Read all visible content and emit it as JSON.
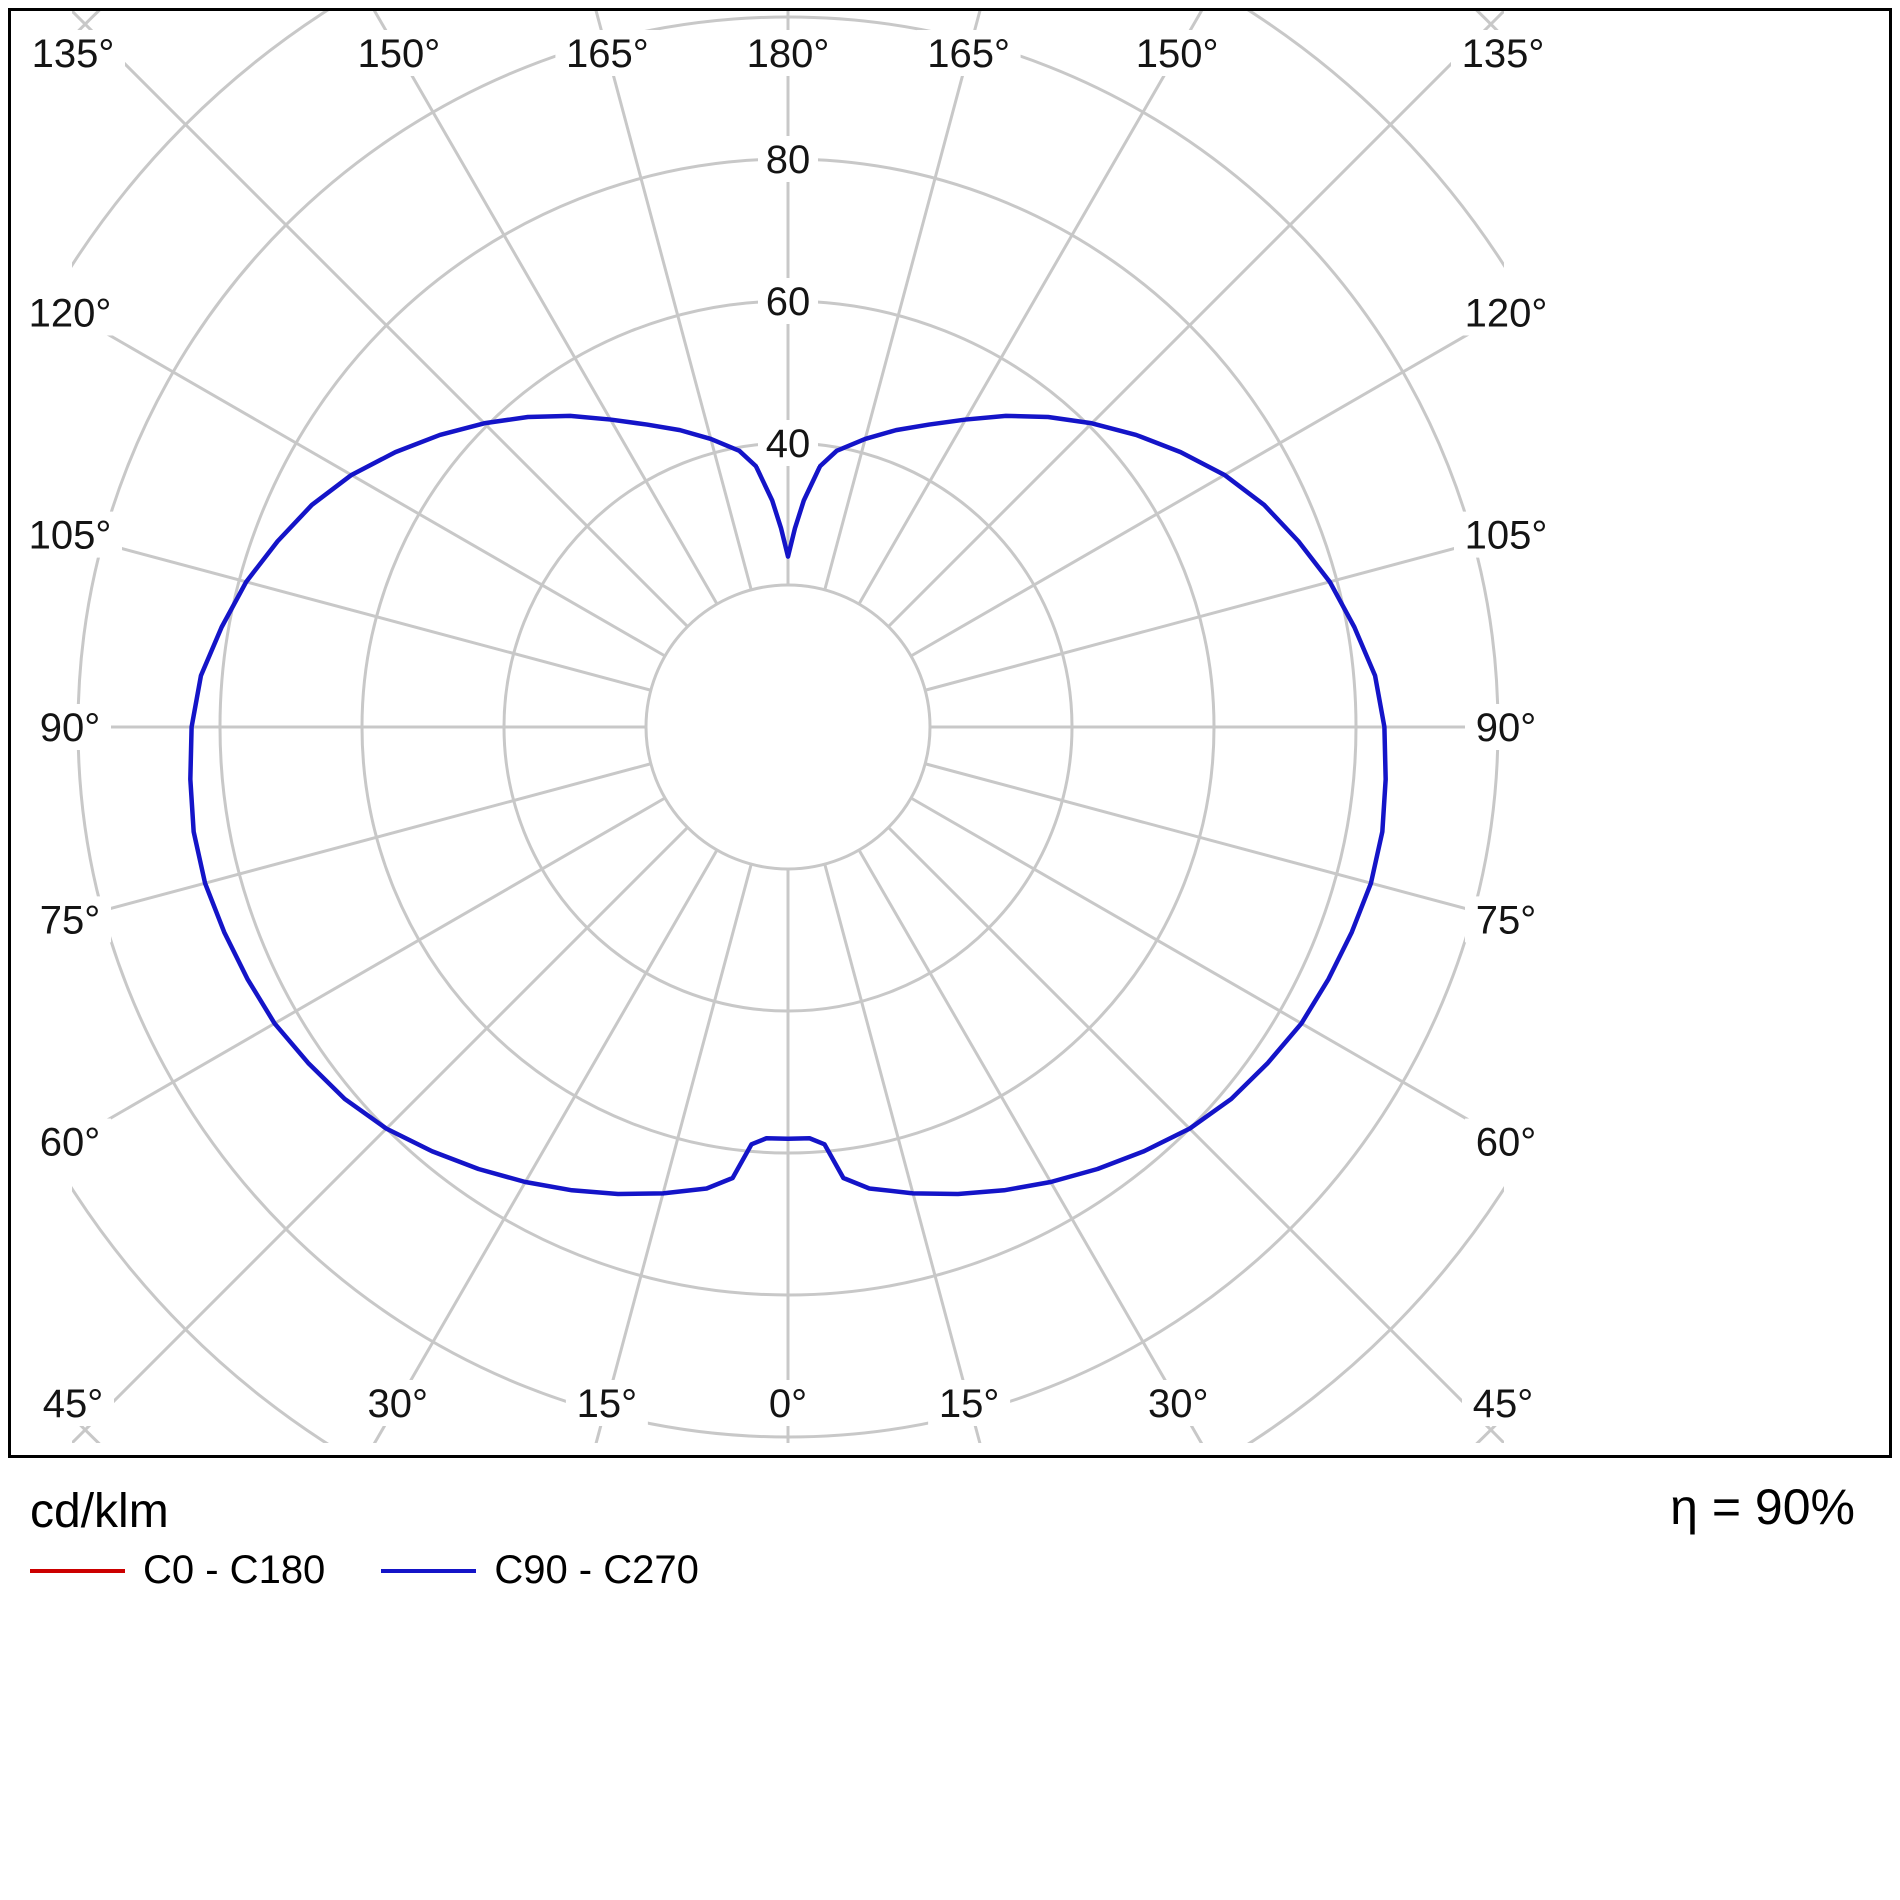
{
  "chart_data": {
    "type": "polar-photometric",
    "units": "cd/klm",
    "efficiency_label": "η = 90%",
    "radial_axis": {
      "min": 0,
      "max": 100,
      "ring_step": 20,
      "grid_ring_max": 140,
      "labeled_rings": [
        40,
        60,
        80
      ]
    },
    "angular_axis": {
      "ray_step_deg": 15,
      "labels_deg": [
        0,
        15,
        30,
        45,
        60,
        75,
        90,
        105,
        120,
        135,
        150,
        165,
        180
      ],
      "label_suffix": "°"
    },
    "style": {
      "grid_color": "#c8c8c8",
      "text_color": "#141414",
      "border_color": "#000000",
      "background": "#ffffff"
    },
    "series": [
      {
        "name": "C0 - C180",
        "color": "#cc0000",
        "visible_in_plot": false
      },
      {
        "name": "C90 - C270",
        "color": "#1414c8",
        "visible_in_plot": true,
        "symmetric": true,
        "gamma_deg": [
          0,
          3,
          5,
          7,
          10,
          15,
          20,
          25,
          30,
          35,
          40,
          45,
          50,
          55,
          60,
          65,
          70,
          75,
          80,
          85,
          90,
          95,
          100,
          105,
          110,
          115,
          120,
          125,
          130,
          135,
          140,
          145,
          150,
          155,
          160,
          165,
          170,
          173,
          176,
          178,
          180
        ],
        "values_cd_klm": [
          58,
          58,
          59,
          64,
          66,
          68,
          70,
          72,
          74,
          76,
          78,
          80,
          81.5,
          82.5,
          83.5,
          84,
          84.5,
          85,
          85,
          84.5,
          84,
          83,
          81,
          79,
          76.5,
          74,
          71,
          67.5,
          64,
          60.5,
          57,
          53.5,
          50,
          47,
          44.5,
          42,
          39.5,
          37,
          32,
          28,
          24
        ]
      }
    ]
  }
}
